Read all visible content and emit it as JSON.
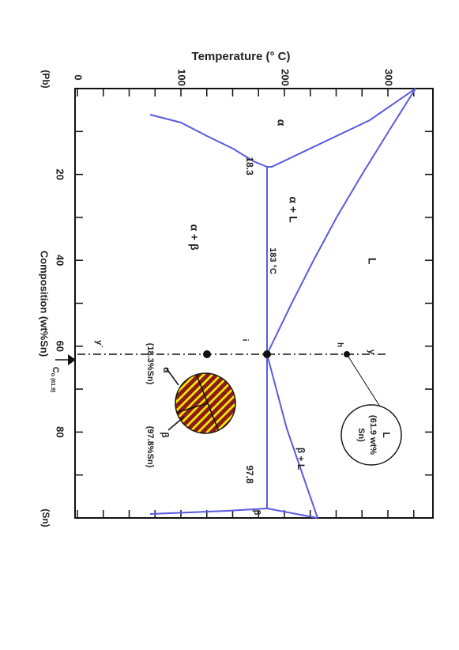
{
  "diagram": {
    "temperature_axis": {
      "title": "Temperature (° C)",
      "ticks": [
        "0",
        "100",
        "200",
        "300"
      ]
    },
    "composition_axis": {
      "title": "Composition (wt%Sn)",
      "ticks": [
        "20",
        "40",
        "60",
        "80"
      ],
      "left_end": "(Pb)",
      "right_end": "(Sn)"
    },
    "regions": {
      "alpha": "α",
      "alpha_liquid": "α + L",
      "liquid": "L",
      "alpha_beta": "α + β",
      "beta_liquid": "β + L",
      "beta": "β"
    },
    "points": {
      "eutectic_temperature": "183 °C",
      "alpha_limit": "18.3",
      "beta_limit": "97.8",
      "h": "h",
      "i": "i",
      "y": "y",
      "y_prime": "y´"
    },
    "composition_marker": {
      "symbol": "C",
      "subscript": "o (61.9)"
    },
    "liquid_callout": {
      "lines": [
        "L",
        "(61.9 wt%",
        "Sn)"
      ]
    },
    "microstructure": {
      "alpha": "α",
      "alpha_comp": "(18.3%Sn)",
      "beta": "β",
      "beta_comp": "(97.8%Sn)"
    }
  }
}
